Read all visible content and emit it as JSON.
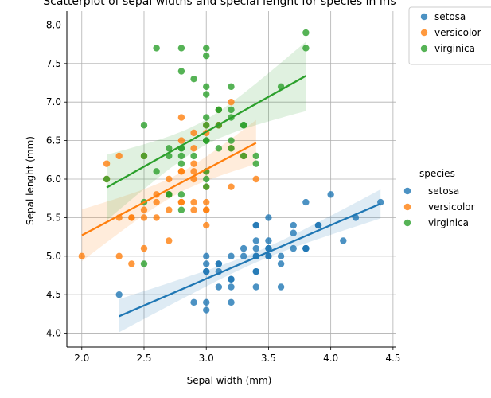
{
  "chart_data": {
    "type": "scatter",
    "title": "Scatterplot of sepal widths and special lenght for species in iris",
    "xlabel": "Sepal width (mm)",
    "ylabel": "Sepal lenght (mm)",
    "xlim": [
      1.88,
      4.52
    ],
    "ylim": [
      3.82,
      8.18
    ],
    "xticks": [
      "2.0",
      "2.5",
      "3.0",
      "3.5",
      "4.0",
      "4.5"
    ],
    "yticks": [
      "4.0",
      "4.5",
      "5.0",
      "5.5",
      "6.0",
      "6.5",
      "7.0",
      "7.5",
      "8.0"
    ],
    "grid": true,
    "legend_title": "species",
    "legend_placement": "right",
    "inner_legend_placement": "top-right outside",
    "series": [
      {
        "name": "setosa",
        "color": "#1f77b4",
        "regression": {
          "x": [
            2.3,
            4.4
          ],
          "y": [
            4.22,
            5.68
          ]
        },
        "points": [
          [
            3.5,
            5.1
          ],
          [
            3.0,
            4.9
          ],
          [
            3.2,
            4.7
          ],
          [
            3.1,
            4.6
          ],
          [
            3.6,
            5.0
          ],
          [
            3.9,
            5.4
          ],
          [
            3.4,
            4.6
          ],
          [
            3.4,
            5.0
          ],
          [
            2.9,
            4.4
          ],
          [
            3.1,
            4.9
          ],
          [
            3.7,
            5.4
          ],
          [
            3.4,
            4.8
          ],
          [
            3.0,
            4.8
          ],
          [
            3.0,
            4.3
          ],
          [
            4.0,
            5.8
          ],
          [
            4.4,
            5.7
          ],
          [
            3.9,
            5.4
          ],
          [
            3.5,
            5.1
          ],
          [
            3.8,
            5.7
          ],
          [
            3.8,
            5.1
          ],
          [
            3.4,
            5.4
          ],
          [
            3.7,
            5.1
          ],
          [
            3.6,
            4.6
          ],
          [
            3.3,
            5.1
          ],
          [
            3.4,
            4.8
          ],
          [
            3.0,
            5.0
          ],
          [
            3.4,
            5.0
          ],
          [
            3.5,
            5.2
          ],
          [
            3.4,
            5.2
          ],
          [
            3.2,
            4.7
          ],
          [
            3.1,
            4.8
          ],
          [
            3.4,
            5.4
          ],
          [
            4.1,
            5.2
          ],
          [
            4.2,
            5.5
          ],
          [
            3.1,
            4.9
          ],
          [
            3.2,
            5.0
          ],
          [
            3.5,
            5.5
          ],
          [
            3.6,
            4.9
          ],
          [
            3.0,
            4.4
          ],
          [
            3.4,
            5.1
          ],
          [
            3.5,
            5.0
          ],
          [
            2.3,
            4.5
          ],
          [
            3.2,
            4.4
          ],
          [
            3.5,
            5.0
          ],
          [
            3.8,
            5.1
          ],
          [
            3.0,
            4.8
          ],
          [
            3.8,
            5.1
          ],
          [
            3.2,
            4.6
          ],
          [
            3.7,
            5.3
          ],
          [
            3.3,
            5.0
          ]
        ]
      },
      {
        "name": "versicolor",
        "color": "#ff7f0e",
        "regression": {
          "x": [
            2.0,
            3.4
          ],
          "y": [
            5.27,
            6.47
          ]
        },
        "points": [
          [
            3.2,
            7.0
          ],
          [
            3.2,
            6.4
          ],
          [
            3.1,
            6.9
          ],
          [
            2.3,
            5.5
          ],
          [
            2.8,
            6.5
          ],
          [
            2.8,
            5.7
          ],
          [
            3.3,
            6.3
          ],
          [
            2.4,
            4.9
          ],
          [
            2.9,
            6.6
          ],
          [
            2.7,
            5.2
          ],
          [
            2.0,
            5.0
          ],
          [
            3.0,
            5.9
          ],
          [
            2.2,
            6.0
          ],
          [
            2.9,
            6.1
          ],
          [
            2.9,
            5.6
          ],
          [
            3.1,
            6.7
          ],
          [
            3.0,
            5.6
          ],
          [
            2.7,
            5.8
          ],
          [
            2.2,
            6.2
          ],
          [
            2.5,
            5.6
          ],
          [
            3.2,
            5.9
          ],
          [
            2.8,
            6.1
          ],
          [
            2.5,
            6.3
          ],
          [
            2.8,
            6.1
          ],
          [
            2.9,
            6.4
          ],
          [
            3.0,
            6.6
          ],
          [
            2.8,
            6.8
          ],
          [
            3.0,
            6.7
          ],
          [
            2.9,
            6.0
          ],
          [
            2.6,
            5.7
          ],
          [
            2.4,
            5.5
          ],
          [
            2.4,
            5.5
          ],
          [
            2.7,
            5.8
          ],
          [
            2.7,
            6.0
          ],
          [
            3.0,
            5.4
          ],
          [
            3.4,
            6.0
          ],
          [
            3.1,
            6.7
          ],
          [
            2.3,
            6.3
          ],
          [
            3.0,
            5.6
          ],
          [
            2.5,
            5.5
          ],
          [
            2.6,
            5.5
          ],
          [
            3.0,
            6.1
          ],
          [
            2.6,
            5.8
          ],
          [
            2.3,
            5.0
          ],
          [
            2.7,
            5.6
          ],
          [
            3.0,
            5.7
          ],
          [
            2.9,
            5.7
          ],
          [
            2.9,
            6.2
          ],
          [
            2.5,
            5.1
          ],
          [
            2.8,
            5.7
          ]
        ]
      },
      {
        "name": "virginica",
        "color": "#2ca02c",
        "regression": {
          "x": [
            2.2,
            3.8
          ],
          "y": [
            5.89,
            7.34
          ]
        },
        "points": [
          [
            3.3,
            6.3
          ],
          [
            2.7,
            5.8
          ],
          [
            3.0,
            7.1
          ],
          [
            2.9,
            6.3
          ],
          [
            3.0,
            6.5
          ],
          [
            3.0,
            7.6
          ],
          [
            2.5,
            4.9
          ],
          [
            2.9,
            7.3
          ],
          [
            2.5,
            6.7
          ],
          [
            3.6,
            7.2
          ],
          [
            3.2,
            6.5
          ],
          [
            2.7,
            6.4
          ],
          [
            3.0,
            6.8
          ],
          [
            2.5,
            5.7
          ],
          [
            2.8,
            5.8
          ],
          [
            3.2,
            6.4
          ],
          [
            3.0,
            6.5
          ],
          [
            3.8,
            7.7
          ],
          [
            2.6,
            7.7
          ],
          [
            2.2,
            6.0
          ],
          [
            3.2,
            6.9
          ],
          [
            2.8,
            5.6
          ],
          [
            2.8,
            7.7
          ],
          [
            2.7,
            6.3
          ],
          [
            3.3,
            6.7
          ],
          [
            3.2,
            7.2
          ],
          [
            2.8,
            6.2
          ],
          [
            3.0,
            6.1
          ],
          [
            2.8,
            6.4
          ],
          [
            3.0,
            7.2
          ],
          [
            2.8,
            7.4
          ],
          [
            3.8,
            7.9
          ],
          [
            2.8,
            6.4
          ],
          [
            2.8,
            6.3
          ],
          [
            2.6,
            6.1
          ],
          [
            3.0,
            7.7
          ],
          [
            3.4,
            6.3
          ],
          [
            3.1,
            6.4
          ],
          [
            3.0,
            6.0
          ],
          [
            3.1,
            6.9
          ],
          [
            3.1,
            6.7
          ],
          [
            3.1,
            6.9
          ],
          [
            2.7,
            5.8
          ],
          [
            3.2,
            6.8
          ],
          [
            3.3,
            6.7
          ],
          [
            3.0,
            6.7
          ],
          [
            2.5,
            6.3
          ],
          [
            3.0,
            6.5
          ],
          [
            3.4,
            6.2
          ],
          [
            3.0,
            5.9
          ]
        ]
      }
    ]
  }
}
